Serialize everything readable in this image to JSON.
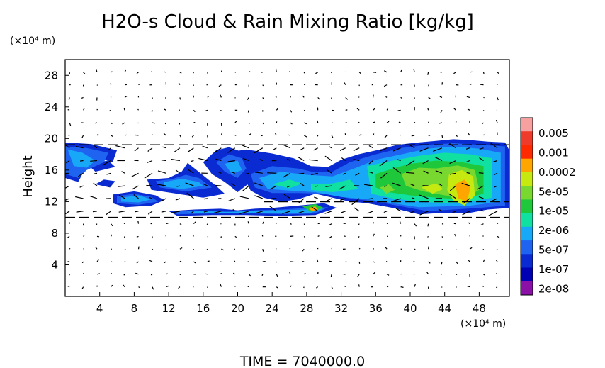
{
  "chart_data": {
    "type": "heatmap",
    "title": "H2O-s Cloud & Rain Mixing Ratio [kg/kg]",
    "ylabel": "Height",
    "yunit": "(×10⁴ m)",
    "xunit": "(×10⁴ m)",
    "xlim": [
      0,
      51.5
    ],
    "ylim": [
      0,
      30
    ],
    "x_ticks": [
      4,
      8,
      12,
      16,
      20,
      24,
      28,
      32,
      36,
      40,
      44,
      48
    ],
    "y_ticks": [
      4,
      8,
      12,
      16,
      20,
      24,
      28
    ],
    "colorbar": {
      "labels": [
        "0.005",
        "0.001",
        "0.0002",
        "5e-05",
        "1e-05",
        "2e-06",
        "5e-07",
        "1e-07",
        "2e-08"
      ],
      "colors": [
        "#f7a0a0",
        "#ef3c2a",
        "#ff2a00",
        "#ffa500",
        "#c6ea10",
        "#78d830",
        "#1ec83a",
        "#10e0a0",
        "#18a8f8",
        "#1e64f0",
        "#0a2ad2",
        "#0000b4",
        "#8a10a8"
      ]
    },
    "regions": [
      {
        "level": 2,
        "points": [
          [
            0,
            19.5
          ],
          [
            3,
            19.3
          ],
          [
            6,
            18.5
          ],
          [
            5.5,
            17
          ],
          [
            4,
            17.5
          ],
          [
            2.5,
            16.5
          ],
          [
            1.5,
            14.5
          ],
          [
            0,
            15
          ]
        ]
      },
      {
        "level": 2,
        "points": [
          [
            2.5,
            16.8
          ],
          [
            5,
            17.2
          ],
          [
            5.8,
            16.4
          ],
          [
            3.5,
            15.8
          ]
        ]
      },
      {
        "level": 2,
        "points": [
          [
            3.5,
            14.2
          ],
          [
            4.5,
            14.8
          ],
          [
            5.8,
            14.6
          ],
          [
            5.2,
            13.8
          ]
        ]
      },
      {
        "level": 2,
        "points": [
          [
            5.5,
            12.9
          ],
          [
            8,
            13.3
          ],
          [
            10.5,
            12.8
          ],
          [
            11.5,
            12.2
          ],
          [
            10,
            11.5
          ],
          [
            7,
            11.3
          ],
          [
            5.5,
            11.8
          ]
        ]
      },
      {
        "level": 2,
        "points": [
          [
            9.5,
            14.8
          ],
          [
            12,
            15
          ],
          [
            13.5,
            15.8
          ],
          [
            14.2,
            16.9
          ],
          [
            15.8,
            15.5
          ],
          [
            17.5,
            14
          ],
          [
            18.5,
            13
          ],
          [
            16,
            12.5
          ],
          [
            13,
            13
          ],
          [
            10,
            13.5
          ]
        ]
      },
      {
        "level": 2,
        "points": [
          [
            16,
            17
          ],
          [
            17.5,
            18.5
          ],
          [
            19,
            18.9
          ],
          [
            20.5,
            18.3
          ],
          [
            21,
            17
          ],
          [
            22.5,
            16
          ],
          [
            21.5,
            14.5
          ],
          [
            20,
            13.2
          ],
          [
            18.5,
            14.5
          ],
          [
            17,
            15.5
          ]
        ]
      },
      {
        "level": 2,
        "points": [
          [
            18.5,
            18.2
          ],
          [
            21,
            18.6
          ],
          [
            24,
            18.1
          ],
          [
            26.5,
            17.5
          ],
          [
            28.5,
            16.5
          ],
          [
            30.5,
            16.4
          ],
          [
            32,
            17.3
          ],
          [
            34,
            18
          ],
          [
            36.5,
            18.6
          ],
          [
            38.5,
            19.2
          ],
          [
            41,
            19.5
          ],
          [
            43,
            19.7
          ],
          [
            45,
            19.9
          ],
          [
            47,
            19.8
          ],
          [
            49,
            19.6
          ],
          [
            51,
            19.5
          ],
          [
            51.5,
            18.5
          ],
          [
            51.5,
            11.2
          ],
          [
            49,
            11
          ],
          [
            46.5,
            10.5
          ],
          [
            44,
            10.6
          ],
          [
            41,
            10.4
          ],
          [
            38,
            11.2
          ],
          [
            35,
            11.8
          ],
          [
            33,
            12
          ],
          [
            31,
            12.5
          ],
          [
            29,
            13
          ],
          [
            27,
            12.3
          ],
          [
            25,
            12
          ],
          [
            23,
            12.5
          ],
          [
            21.5,
            13.4
          ],
          [
            21,
            14.5
          ],
          [
            21.5,
            16
          ],
          [
            20,
            17.2
          ]
        ]
      },
      {
        "level": 2,
        "points": [
          [
            12,
            10.8
          ],
          [
            15,
            11
          ],
          [
            18,
            11.1
          ],
          [
            20,
            10.9
          ],
          [
            22,
            11.1
          ],
          [
            24,
            11.2
          ],
          [
            27,
            11.5
          ],
          [
            30,
            11.8
          ],
          [
            31.5,
            11.2
          ],
          [
            29,
            10.3
          ],
          [
            25,
            10.2
          ],
          [
            21,
            10.3
          ],
          [
            17,
            10.3
          ],
          [
            13,
            10.2
          ]
        ]
      },
      {
        "level": 3,
        "points": [
          [
            0,
            19
          ],
          [
            2.5,
            18.8
          ],
          [
            5,
            18.2
          ],
          [
            4.5,
            17
          ],
          [
            2.5,
            16
          ],
          [
            1.5,
            15
          ],
          [
            0,
            15.5
          ]
        ]
      },
      {
        "level": 3,
        "points": [
          [
            6,
            12.7
          ],
          [
            8,
            13
          ],
          [
            10,
            12.6
          ],
          [
            10.8,
            12
          ],
          [
            8.5,
            11.6
          ],
          [
            6,
            11.8
          ]
        ]
      },
      {
        "level": 3,
        "points": [
          [
            10.5,
            14.6
          ],
          [
            12.5,
            14.9
          ],
          [
            14,
            15.4
          ],
          [
            15.5,
            15
          ],
          [
            17,
            13.8
          ],
          [
            14,
            13.3
          ],
          [
            11,
            13.8
          ]
        ]
      },
      {
        "level": 3,
        "points": [
          [
            17.5,
            17
          ],
          [
            19,
            18
          ],
          [
            20.5,
            17.5
          ],
          [
            21,
            16.2
          ],
          [
            20,
            15
          ],
          [
            18.5,
            15.8
          ]
        ]
      },
      {
        "level": 3,
        "points": [
          [
            21.5,
            15.5
          ],
          [
            24,
            16.5
          ],
          [
            27,
            16.2
          ],
          [
            29,
            15.7
          ],
          [
            31,
            15.8
          ],
          [
            33,
            17
          ],
          [
            36,
            18
          ],
          [
            39,
            18.8
          ],
          [
            42,
            19.2
          ],
          [
            45,
            19.4
          ],
          [
            48,
            19.2
          ],
          [
            51,
            19
          ],
          [
            51,
            11.5
          ],
          [
            48,
            11.2
          ],
          [
            45,
            11
          ],
          [
            42,
            10.8
          ],
          [
            39,
            11.4
          ],
          [
            36,
            12
          ],
          [
            33,
            12.4
          ],
          [
            30,
            13
          ],
          [
            27,
            13.1
          ],
          [
            24,
            13.1
          ],
          [
            22,
            13.8
          ]
        ]
      },
      {
        "level": 3,
        "points": [
          [
            12.5,
            10.7
          ],
          [
            15,
            10.9
          ],
          [
            17,
            10.8
          ],
          [
            19.5,
            10.7
          ],
          [
            22,
            10.9
          ],
          [
            25,
            11
          ],
          [
            28,
            11.2
          ],
          [
            30.5,
            11.3
          ],
          [
            29,
            10.5
          ],
          [
            26,
            10.4
          ],
          [
            22,
            10.5
          ],
          [
            17,
            10.5
          ],
          [
            13,
            10.4
          ]
        ]
      },
      {
        "level": 4,
        "points": [
          [
            0.3,
            18.6
          ],
          [
            2,
            18.2
          ],
          [
            3.5,
            17.2
          ],
          [
            2.5,
            16.3
          ],
          [
            1,
            16.5
          ]
        ]
      },
      {
        "level": 4,
        "points": [
          [
            6.5,
            12.5
          ],
          [
            8.5,
            12.8
          ],
          [
            10,
            12.3
          ],
          [
            8.5,
            11.9
          ],
          [
            6.5,
            12
          ]
        ]
      },
      {
        "level": 4,
        "points": [
          [
            11.5,
            14.5
          ],
          [
            13.5,
            14.9
          ],
          [
            15.5,
            14.5
          ],
          [
            16,
            14
          ],
          [
            13.5,
            13.6
          ],
          [
            11.5,
            13.9
          ]
        ]
      },
      {
        "level": 4,
        "points": [
          [
            18.5,
            16.8
          ],
          [
            20,
            17.2
          ],
          [
            20.5,
            16
          ],
          [
            19.3,
            15.5
          ]
        ]
      },
      {
        "level": 4,
        "points": [
          [
            22.5,
            15
          ],
          [
            25,
            15.8
          ],
          [
            28,
            15.4
          ],
          [
            31,
            15.2
          ],
          [
            33.5,
            16.2
          ],
          [
            36,
            17.3
          ],
          [
            39,
            18
          ],
          [
            42,
            18.7
          ],
          [
            45,
            19
          ],
          [
            48,
            18.7
          ],
          [
            50.5,
            18.2
          ],
          [
            50.5,
            12
          ],
          [
            47,
            11.5
          ],
          [
            44,
            11.4
          ],
          [
            41,
            11.3
          ],
          [
            38,
            11.8
          ],
          [
            35,
            12.3
          ],
          [
            32,
            12.6
          ],
          [
            29,
            13.2
          ],
          [
            26,
            13.4
          ],
          [
            23.5,
            13.6
          ]
        ]
      },
      {
        "level": 4,
        "points": [
          [
            14,
            10.7
          ],
          [
            16,
            10.8
          ],
          [
            18.5,
            10.7
          ],
          [
            21.5,
            10.8
          ],
          [
            24.5,
            10.9
          ],
          [
            28,
            11
          ],
          [
            30,
            11.1
          ],
          [
            28.5,
            10.6
          ],
          [
            25,
            10.5
          ],
          [
            21,
            10.6
          ],
          [
            16,
            10.5
          ]
        ]
      },
      {
        "level": 5,
        "points": [
          [
            35,
            16.5
          ],
          [
            38,
            17.2
          ],
          [
            41,
            17.8
          ],
          [
            44,
            18.2
          ],
          [
            47,
            18
          ],
          [
            49.5,
            17.5
          ],
          [
            49.5,
            12.5
          ],
          [
            47,
            12
          ],
          [
            44,
            11.8
          ],
          [
            41,
            12
          ],
          [
            38,
            12.4
          ],
          [
            35.5,
            13
          ]
        ]
      },
      {
        "level": 5,
        "points": [
          [
            28.5,
            14.2
          ],
          [
            31,
            14.3
          ],
          [
            33,
            14.8
          ],
          [
            34,
            13.6
          ],
          [
            31,
            13.2
          ],
          [
            28.5,
            13.5
          ]
        ]
      },
      {
        "level": 5,
        "points": [
          [
            24,
            14.2
          ],
          [
            26,
            14.8
          ],
          [
            27.5,
            14.3
          ],
          [
            26,
            13.7
          ]
        ]
      },
      {
        "level": 6,
        "points": [
          [
            36,
            15.5
          ],
          [
            38,
            16.2
          ],
          [
            40,
            16.8
          ],
          [
            43,
            17.2
          ],
          [
            46,
            17
          ],
          [
            48.5,
            16.5
          ],
          [
            48.5,
            13
          ],
          [
            46,
            12.3
          ],
          [
            43,
            12.5
          ],
          [
            40,
            12.8
          ],
          [
            37.5,
            13.2
          ],
          [
            36,
            13.8
          ]
        ]
      },
      {
        "level": 6,
        "points": [
          [
            27.5,
            11.4
          ],
          [
            29,
            11.7
          ],
          [
            30,
            11.2
          ],
          [
            28.5,
            10.7
          ]
        ]
      },
      {
        "level": 7,
        "points": [
          [
            39,
            15.5
          ],
          [
            41,
            16.3
          ],
          [
            43,
            16.2
          ],
          [
            45.5,
            16.6
          ],
          [
            47.5,
            16
          ],
          [
            48,
            13.5
          ],
          [
            46.5,
            12.5
          ],
          [
            44,
            12.8
          ],
          [
            41.5,
            13.3
          ],
          [
            39.5,
            14
          ]
        ]
      },
      {
        "level": 7,
        "points": [
          [
            36.5,
            13.8
          ],
          [
            37.5,
            14.2
          ],
          [
            38.2,
            13.5
          ],
          [
            37.2,
            13
          ]
        ]
      },
      {
        "level": 8,
        "points": [
          [
            44.5,
            15.5
          ],
          [
            46,
            16
          ],
          [
            47.3,
            15.2
          ],
          [
            47.5,
            12.8
          ],
          [
            46.3,
            11.5
          ],
          [
            45,
            12.2
          ],
          [
            44.3,
            13.5
          ]
        ]
      },
      {
        "level": 8,
        "points": [
          [
            41.3,
            13.8
          ],
          [
            43,
            14.3
          ],
          [
            43.8,
            13.6
          ],
          [
            42.6,
            13
          ]
        ]
      },
      {
        "level": 9,
        "points": [
          [
            45.2,
            14.2
          ],
          [
            46.3,
            14.8
          ],
          [
            47,
            13.8
          ],
          [
            46.6,
            12
          ],
          [
            45.6,
            12.4
          ]
        ]
      },
      {
        "level": 9,
        "points": [
          [
            28.2,
            11.2
          ],
          [
            29,
            11.4
          ],
          [
            29.3,
            11
          ],
          [
            28.6,
            10.8
          ]
        ]
      }
    ],
    "streamlines": [
      {
        "y": 19.2,
        "x": [
          0,
          51.5
        ]
      },
      {
        "y": 10.0,
        "x": [
          0,
          51.5
        ]
      },
      {
        "y": 12.0,
        "x": [
          23,
          51.5
        ]
      }
    ]
  },
  "footer": {
    "time_label": "TIME  =  7040000.0"
  }
}
